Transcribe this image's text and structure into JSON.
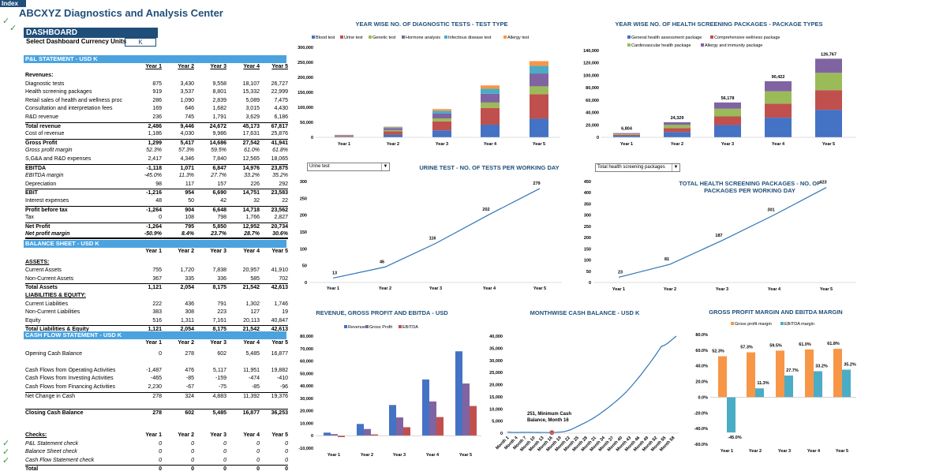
{
  "header": {
    "index_tab": "Index",
    "title": "ABCXYZ Diagnostics and Analysis Center",
    "dashboard_label": "DASHBOARD",
    "currency_label": "Select Dashboard Currency Units",
    "currency_value": "K",
    "check_glyph": "✓"
  },
  "years": [
    "Year 1",
    "Year 2",
    "Year 3",
    "Year 4",
    "Year 5"
  ],
  "pl": {
    "title": "P&L STATEMENT - USD K",
    "rows": [
      {
        "label": "Revenues:",
        "style": "b",
        "values": [
          "",
          "",
          "",
          "",
          ""
        ]
      },
      {
        "label": "Diagnostic tests",
        "style": "",
        "values": [
          "875",
          "3,430",
          "9,558",
          "18,107",
          "26,727"
        ]
      },
      {
        "label": "Health screening packages",
        "style": "",
        "values": [
          "919",
          "3,537",
          "8,801",
          "15,332",
          "22,999"
        ]
      },
      {
        "label": "Retail sales of health and wellness proc",
        "style": "",
        "values": [
          "286",
          "1,090",
          "2,839",
          "5,089",
          "7,475"
        ]
      },
      {
        "label": "Consultation and interpretation fees",
        "style": "",
        "values": [
          "169",
          "646",
          "1,682",
          "3,015",
          "4,430"
        ]
      },
      {
        "label": "R&D revenue",
        "style": "",
        "values": [
          "236",
          "745",
          "1,791",
          "3,629",
          "6,186"
        ]
      },
      {
        "label": "Total revenue",
        "style": "b line",
        "values": [
          "2,486",
          "9,446",
          "24,672",
          "45,173",
          "67,817"
        ]
      },
      {
        "label": "Cost of revenue",
        "style": "",
        "values": [
          "1,186",
          "4,030",
          "9,986",
          "17,631",
          "25,876"
        ]
      },
      {
        "label": "Gross Profit",
        "style": "b line",
        "values": [
          "1,299",
          "5,417",
          "14,686",
          "27,542",
          "41,941"
        ]
      },
      {
        "label": "Gross profit margin",
        "style": "i",
        "values": [
          "52.3%",
          "57.3%",
          "59.5%",
          "61.0%",
          "61.8%"
        ]
      },
      {
        "label": "S,G&A and R&D expenses",
        "style": "",
        "values": [
          "2,417",
          "4,346",
          "7,840",
          "12,565",
          "18,065"
        ]
      },
      {
        "label": "EBITDA",
        "style": "b line",
        "values": [
          "-1,118",
          "1,071",
          "6,847",
          "14,976",
          "23,875"
        ]
      },
      {
        "label": "EBITDA margin",
        "style": "i",
        "values": [
          "-45.0%",
          "11.3%",
          "27.7%",
          "33.2%",
          "35.2%"
        ]
      },
      {
        "label": "Depreciation",
        "style": "",
        "values": [
          "98",
          "117",
          "157",
          "226",
          "292"
        ]
      },
      {
        "label": "EBIT",
        "style": "b line",
        "values": [
          "-1,216",
          "954",
          "6,690",
          "14,751",
          "23,583"
        ]
      },
      {
        "label": "Interest expenses",
        "style": "",
        "values": [
          "48",
          "50",
          "42",
          "32",
          "22"
        ]
      },
      {
        "label": "Profit before tax",
        "style": "b line",
        "values": [
          "-1,264",
          "904",
          "6,648",
          "14,718",
          "23,562"
        ]
      },
      {
        "label": "Tax",
        "style": "",
        "values": [
          "0",
          "108",
          "798",
          "1,766",
          "2,827"
        ]
      },
      {
        "label": "Net Profit",
        "style": "b line",
        "values": [
          "-1,264",
          "795",
          "5,850",
          "12,952",
          "20,734"
        ]
      },
      {
        "label": "Net profit margin",
        "style": "b i dbl",
        "values": [
          "-50.9%",
          "8.4%",
          "23.7%",
          "28.7%",
          "30.6%"
        ]
      }
    ]
  },
  "bs": {
    "title": "BALANCE SHEET - USD K",
    "rows": [
      {
        "label": "",
        "style": "b",
        "values": [
          "Year 1",
          "Year 2",
          "Year 3",
          "Year 4",
          "Year 5"
        ]
      },
      {
        "label": "ASSETS:",
        "style": "b u",
        "values": [
          "",
          "",
          "",
          "",
          ""
        ]
      },
      {
        "label": "Current Assets",
        "style": "",
        "values": [
          "755",
          "1,720",
          "7,838",
          "20,957",
          "41,910"
        ]
      },
      {
        "label": "Non-Current Assets",
        "style": "",
        "values": [
          "367",
          "335",
          "336",
          "585",
          "702"
        ]
      },
      {
        "label": "Total Assets",
        "style": "b line",
        "values": [
          "1,121",
          "2,054",
          "8,175",
          "21,542",
          "42,613"
        ]
      },
      {
        "label": "LIABILITIES & EQUITY:",
        "style": "b u",
        "values": [
          "",
          "",
          "",
          "",
          ""
        ]
      },
      {
        "label": "Current Liabilities",
        "style": "",
        "values": [
          "222",
          "436",
          "791",
          "1,302",
          "1,746"
        ]
      },
      {
        "label": "Non-Current Liabilities",
        "style": "",
        "values": [
          "383",
          "308",
          "223",
          "127",
          "19"
        ]
      },
      {
        "label": "Equity",
        "style": "",
        "values": [
          "516",
          "1,311",
          "7,161",
          "20,113",
          "40,847"
        ]
      },
      {
        "label": "Total Liabilities & Equity",
        "style": "b line",
        "values": [
          "1,121",
          "2,054",
          "8,175",
          "21,542",
          "42,613"
        ]
      }
    ]
  },
  "cf": {
    "title": "CASH FLOW STATEMENT - USD K",
    "rows": [
      {
        "label": "",
        "style": "b",
        "values": [
          "Year 1",
          "Year 2",
          "Year 3",
          "Year 4",
          "Year 5"
        ]
      },
      {
        "label": "Opening Cash Balance",
        "style": "",
        "values": [
          "0",
          "278",
          "602",
          "5,485",
          "16,877"
        ]
      },
      {
        "label": "",
        "style": "",
        "values": [
          "",
          "",
          "",
          "",
          ""
        ]
      },
      {
        "label": "Cash Flows from Operating Activities",
        "style": "",
        "values": [
          "-1,487",
          "476",
          "5,117",
          "11,951",
          "19,882"
        ]
      },
      {
        "label": "Cash Flows from Investing Activities",
        "style": "",
        "values": [
          "-465",
          "-85",
          "-159",
          "-474",
          "-410"
        ]
      },
      {
        "label": "Cash Flows from Financing Activities",
        "style": "",
        "values": [
          "2,230",
          "-67",
          "-75",
          "-85",
          "-96"
        ]
      },
      {
        "label": "Net Change in Cash",
        "style": "line",
        "values": [
          "278",
          "324",
          "4,883",
          "11,392",
          "19,376"
        ]
      },
      {
        "label": "",
        "style": "",
        "values": [
          "",
          "",
          "",
          "",
          ""
        ]
      },
      {
        "label": "Closing Cash Balance",
        "style": "b line",
        "values": [
          "278",
          "602",
          "5,485",
          "16,877",
          "36,253"
        ]
      }
    ]
  },
  "checks": {
    "rows": [
      {
        "label": "Checks:",
        "style": "b u",
        "values": [
          "Year 1",
          "Year 2",
          "Year 3",
          "Year 4",
          "Year 5"
        ]
      },
      {
        "label": "P&L Statement check",
        "style": "i",
        "values": [
          "0",
          "0",
          "0",
          "0",
          "0"
        ]
      },
      {
        "label": "Balance Sheet check",
        "style": "i",
        "values": [
          "0",
          "0",
          "0",
          "0",
          "0"
        ]
      },
      {
        "label": "Cash Flow Statement check",
        "style": "i",
        "values": [
          "0",
          "0",
          "0",
          "0",
          "0"
        ]
      },
      {
        "label": "Total",
        "style": "b line",
        "values": [
          "0",
          "0",
          "0",
          "0",
          "0"
        ]
      }
    ]
  },
  "dropdowns": {
    "urine": "Urine test",
    "package": "Total health screening packages"
  },
  "chart_data": [
    {
      "id": "tests",
      "type": "bar",
      "stacked": true,
      "title": "YEAR WISE NO. OF DIAGNOSTIC TESTS - TEST TYPE",
      "categories": [
        "Year 1",
        "Year 2",
        "Year 3",
        "Year 4",
        "Year 5"
      ],
      "ylim": [
        0,
        300000
      ],
      "yticks": [
        "0",
        "50,000",
        "100,000",
        "150,000",
        "200,000",
        "250,000",
        "300,000"
      ],
      "series": [
        {
          "name": "Blood test",
          "color": "#4472c4",
          "values": [
            2000,
            9000,
            23000,
            42000,
            62000
          ]
        },
        {
          "name": "Urine test",
          "color": "#c0504d",
          "values": [
            2500,
            11000,
            30000,
            56000,
            82000
          ]
        },
        {
          "name": "Genetic test",
          "color": "#9bbb59",
          "values": [
            1000,
            4000,
            10000,
            18000,
            26000
          ]
        },
        {
          "name": "Hormone analysis",
          "color": "#8064a2",
          "values": [
            1500,
            6000,
            16000,
            29000,
            43000
          ]
        },
        {
          "name": "Infectious disease test",
          "color": "#4bacc6",
          "values": [
            800,
            3500,
            9000,
            17000,
            25000
          ]
        },
        {
          "name": "Allergy test",
          "color": "#f79646",
          "values": [
            500,
            2000,
            6000,
            11000,
            16000
          ]
        }
      ]
    },
    {
      "id": "packages",
      "type": "bar",
      "stacked": true,
      "title": "YEAR WISE NO. OF HEALTH SCREENING PACKAGES - PACKAGE TYPES",
      "categories": [
        "Year 1",
        "Year 2",
        "Year 3",
        "Year 4",
        "Year 5"
      ],
      "ylim": [
        0,
        140000
      ],
      "yticks": [
        "0",
        "20,000",
        "40,000",
        "60,000",
        "80,000",
        "100,000",
        "120,000",
        "140,000"
      ],
      "totals": [
        "6,804",
        "24,329",
        "56,178",
        "90,422",
        "126,767"
      ],
      "series": [
        {
          "name": "General health assessment package",
          "color": "#4472c4",
          "values": [
            2381,
            8515,
            19662,
            31648,
            44368
          ]
        },
        {
          "name": "Comprehensive wellness package",
          "color": "#c0504d",
          "values": [
            1701,
            6082,
            14045,
            22606,
            31692
          ]
        },
        {
          "name": "Cardiovascular health package",
          "color": "#9bbb59",
          "values": [
            1497,
            5352,
            12359,
            19893,
            27889
          ]
        },
        {
          "name": "Allergy and immunity package",
          "color": "#8064a2",
          "values": [
            1225,
            4380,
            10112,
            16275,
            22818
          ]
        }
      ]
    },
    {
      "id": "urine",
      "type": "line",
      "title": "URINE TEST -  NO. OF TESTS PER WORKING DAY",
      "categories": [
        "Year 1",
        "Year 2",
        "Year 3",
        "Year 4",
        "Year 5"
      ],
      "values": [
        13,
        46,
        116,
        202,
        279
      ],
      "ylim": [
        0,
        300
      ],
      "yticks": [
        "0",
        "50",
        "100",
        "150",
        "200",
        "250",
        "300"
      ]
    },
    {
      "id": "pkgday",
      "type": "line",
      "title": "TOTAL HEALTH SCREENING PACKAGES -  NO. OF PACKAGES PER WORKING DAY",
      "categories": [
        "Year 1",
        "Year 2",
        "Year 3",
        "Year 4",
        "Year 5"
      ],
      "values": [
        23,
        81,
        187,
        301,
        423
      ],
      "ylim": [
        0,
        450
      ],
      "yticks": [
        "0",
        "50",
        "100",
        "150",
        "200",
        "250",
        "300",
        "350",
        "400",
        "450"
      ]
    },
    {
      "id": "revenue",
      "type": "bar",
      "title": "REVENUE, GROSS PROFIT AND EBITDA  - USD",
      "categories": [
        "Year 1",
        "Year 2",
        "Year 3",
        "Year 4",
        "Year 5"
      ],
      "ylim": [
        -10000,
        80000
      ],
      "yticks": [
        "-10,000",
        "0",
        "10,000",
        "20,000",
        "30,000",
        "40,000",
        "50,000",
        "60,000",
        "70,000",
        "80,000"
      ],
      "series": [
        {
          "name": "Revenue",
          "color": "#4472c4",
          "values": [
            2486,
            9446,
            24672,
            45173,
            67817
          ]
        },
        {
          "name": "Gross Profit",
          "color": "#8064a2",
          "values": [
            1299,
            5417,
            14686,
            27542,
            41941
          ]
        },
        {
          "name": "EBITDA",
          "color": "#c0504d",
          "values": [
            -1118,
            1071,
            6847,
            14976,
            23875
          ]
        }
      ]
    },
    {
      "id": "cash",
      "type": "line",
      "title": "MONTHWISE CASH BALANCE - USD K",
      "ylim": [
        0,
        40000
      ],
      "yticks": [
        "0",
        "5,000",
        "10,000",
        "15,000",
        "20,000",
        "25,000",
        "30,000",
        "35,000",
        "40,000"
      ],
      "xticks": [
        "Month 1",
        "Month 4",
        "Month 7",
        "Month 10",
        "Month 13",
        "Month 16",
        "Month 19",
        "Month 22",
        "Month 25",
        "Month 28",
        "Month 31",
        "Month 34",
        "Month 37",
        "Month 40",
        "Month 43",
        "Month 46",
        "Month 49",
        "Month 52",
        "Month 55",
        "Month 58"
      ],
      "annotation": "251, Minimum Cash Balance, Month 16",
      "min_month": 16,
      "min_value": 251,
      "values": [
        420,
        360,
        310,
        290,
        300,
        320,
        340,
        350,
        330,
        310,
        290,
        278,
        270,
        262,
        256,
        251,
        300,
        380,
        470,
        602,
        900,
        1300,
        1800,
        2400,
        3000,
        3600,
        4200,
        4800,
        5485,
        6200,
        7000,
        7800,
        8700,
        9600,
        10500,
        11500,
        12500,
        13500,
        14600,
        15700,
        16877,
        18200,
        19600,
        21000,
        22500,
        24000,
        25600,
        27200,
        28800,
        30500,
        32200,
        34000,
        35800,
        36253,
        37000,
        38000,
        39000,
        40000
      ]
    },
    {
      "id": "margins",
      "type": "bar",
      "title": "GROSS PROFIT MARGIN AND  EBITDA MARGIN",
      "categories": [
        "Year 1",
        "Year 2",
        "Year 3",
        "Year 4",
        "Year 5"
      ],
      "ylim": [
        -60,
        80
      ],
      "yticks": [
        "-60.0%",
        "-40.0%",
        "-20.0%",
        "0.0%",
        "20.0%",
        "40.0%",
        "60.0%",
        "80.0%"
      ],
      "series": [
        {
          "name": "Gross profit margin",
          "color": "#f79646",
          "values": [
            52.3,
            57.3,
            59.5,
            61.0,
            61.8
          ],
          "labels": [
            "52.3%",
            "57.3%",
            "59.5%",
            "61.0%",
            "61.8%"
          ]
        },
        {
          "name": "EBITDA margin",
          "color": "#4bacc6",
          "values": [
            -45.0,
            11.3,
            27.7,
            33.2,
            35.2
          ],
          "labels": [
            "-45.0%",
            "11.3%",
            "27.7%",
            "33.2%",
            "35.2%"
          ]
        }
      ]
    }
  ]
}
